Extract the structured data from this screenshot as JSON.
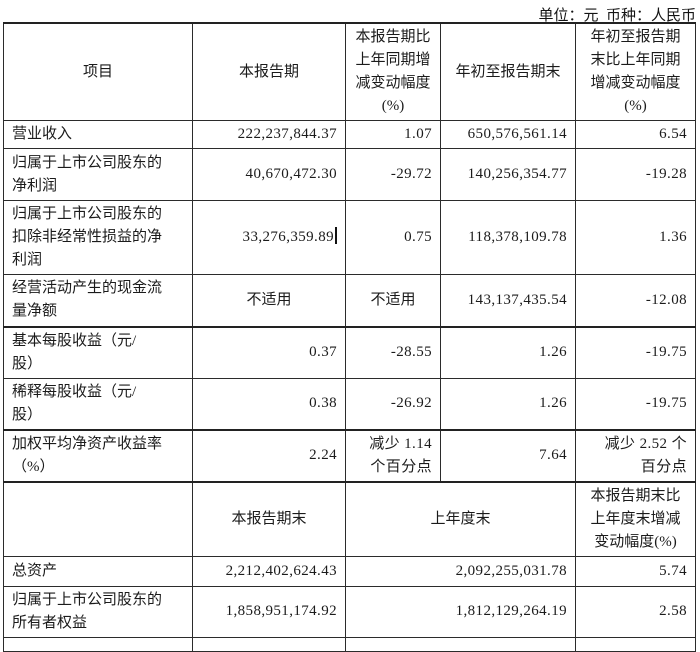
{
  "page": {
    "unit_note": "单位：元  币种：人民币"
  },
  "table": {
    "border_color": "#2b2b2b",
    "sections": [
      {
        "name": "period-results",
        "header": {
          "height": 96,
          "cells": [
            {
              "text": "项目",
              "align": "center"
            },
            {
              "text": "本报告期",
              "align": "center"
            },
            {
              "text": "本报告期比\n上年同期增\n减变动幅度\n(%)",
              "align": "center"
            },
            {
              "text": "年初至报告期末",
              "align": "center"
            },
            {
              "text": "年初至报告期\n末比上年同期\n增减变动幅度\n(%)",
              "align": "center"
            }
          ]
        },
        "rows": [
          {
            "height": 28,
            "cells": [
              {
                "text": "营业收入",
                "align": "left"
              },
              {
                "text": "222,237,844.37",
                "align": "right"
              },
              {
                "text": "1.07",
                "align": "right"
              },
              {
                "text": "650,576,561.14",
                "align": "right"
              },
              {
                "text": "6.54",
                "align": "right"
              }
            ]
          },
          {
            "height": 52,
            "cells": [
              {
                "text": "归属于上市公司股东的\n净利润",
                "align": "left"
              },
              {
                "text": "40,670,472.30",
                "align": "right"
              },
              {
                "text": "-29.72",
                "align": "right"
              },
              {
                "text": "140,256,354.77",
                "align": "right"
              },
              {
                "text": "-19.28",
                "align": "right"
              }
            ]
          },
          {
            "height": 70,
            "cells": [
              {
                "text": "归属于上市公司股东的\n扣除非经常性损益的净\n利润",
                "align": "left"
              },
              {
                "text": "33,276,359.89",
                "align": "right",
                "cursor": true
              },
              {
                "text": "0.75",
                "align": "right"
              },
              {
                "text": "118,378,109.78",
                "align": "right"
              },
              {
                "text": "1.36",
                "align": "right"
              }
            ]
          },
          {
            "height": 52,
            "cells": [
              {
                "text": "经营活动产生的现金流\n量净额",
                "align": "left"
              },
              {
                "text": "不适用",
                "align": "center"
              },
              {
                "text": "不适用",
                "align": "center"
              },
              {
                "text": "143,137,435.54",
                "align": "right"
              },
              {
                "text": "-12.08",
                "align": "right"
              }
            ]
          },
          {
            "height": 50,
            "thick_top": true,
            "cells": [
              {
                "text": "基本每股收益（元/\n股）",
                "align": "left"
              },
              {
                "text": "0.37",
                "align": "right"
              },
              {
                "text": "-28.55",
                "align": "right"
              },
              {
                "text": "1.26",
                "align": "right"
              },
              {
                "text": "-19.75",
                "align": "right"
              }
            ]
          },
          {
            "height": 50,
            "cells": [
              {
                "text": "稀释每股收益（元/\n股）",
                "align": "left"
              },
              {
                "text": "0.38",
                "align": "right"
              },
              {
                "text": "-26.92",
                "align": "right"
              },
              {
                "text": "1.26",
                "align": "right"
              },
              {
                "text": "-19.75",
                "align": "right"
              }
            ]
          },
          {
            "height": 48,
            "thick_top": true,
            "cells": [
              {
                "text": "加权平均净资产收益率\n（%）",
                "align": "left"
              },
              {
                "text": "2.24",
                "align": "right"
              },
              {
                "text": "减少 1.14\n个百分点",
                "align": "right"
              },
              {
                "text": "7.64",
                "align": "right"
              },
              {
                "text": "减少 2.52 个\n百分点",
                "align": "right"
              }
            ]
          }
        ]
      },
      {
        "name": "period-end-position",
        "header": {
          "height": 72,
          "thick_top": true,
          "cells": [
            {
              "text": "",
              "align": "center"
            },
            {
              "text": "本报告期末",
              "align": "center"
            },
            {
              "text": "上年度末",
              "align": "center",
              "colspan": 2
            },
            {
              "text": "本报告期末比\n上年度末增减\n变动幅度(%)",
              "align": "center"
            }
          ]
        },
        "rows": [
          {
            "height": 30,
            "cells": [
              {
                "text": "总资产",
                "align": "left"
              },
              {
                "text": "2,212,402,624.43",
                "align": "right"
              },
              {
                "text": "2,092,255,031.78",
                "align": "right",
                "colspan": 2
              },
              {
                "text": "5.74",
                "align": "right"
              }
            ]
          },
          {
            "height": 50,
            "cells": [
              {
                "text": "归属于上市公司股东的\n所有者权益",
                "align": "left"
              },
              {
                "text": "1,858,951,174.92",
                "align": "right"
              },
              {
                "text": "1,812,129,264.19",
                "align": "right",
                "colspan": 2
              },
              {
                "text": "2.58",
                "align": "right"
              }
            ]
          },
          {
            "height": 14,
            "cells": [
              {
                "text": "",
                "align": "left"
              },
              {
                "text": "",
                "align": "right"
              },
              {
                "text": "",
                "align": "right",
                "colspan": 2
              },
              {
                "text": "",
                "align": "right"
              }
            ]
          }
        ]
      }
    ]
  }
}
